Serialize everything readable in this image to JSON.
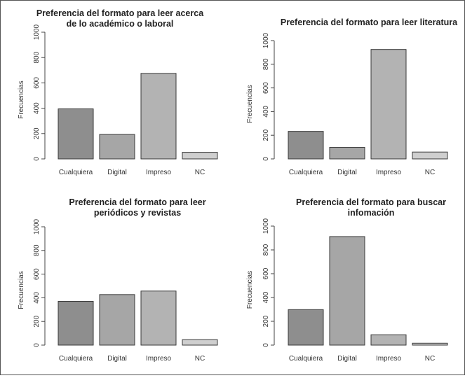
{
  "chart_data": [
    {
      "type": "bar",
      "title": [
        "Preferencia del formato para leer acerca",
        "de lo académico o laboral"
      ],
      "ylabel": "Frecuencias",
      "categories": [
        "Cualquiera",
        "Digital",
        "Impreso",
        "NC"
      ],
      "values": [
        395,
        193,
        675,
        52
      ],
      "ylim": [
        0,
        1000
      ],
      "yticks": [
        0,
        200,
        400,
        600,
        800,
        1000
      ],
      "bar_colors": [
        "#8e8e8e",
        "#a6a6a6",
        "#b3b3b3",
        "#cfcfcf"
      ]
    },
    {
      "type": "bar",
      "title": [
        "Preferencia del formato para leer literatura"
      ],
      "ylabel": "Frecuencias",
      "categories": [
        "Cualquiera",
        "Digital",
        "Impreso",
        "NC"
      ],
      "values": [
        233,
        98,
        925,
        58
      ],
      "ylim": [
        0,
        1000
      ],
      "yticks": [
        0,
        200,
        400,
        600,
        800,
        1000
      ],
      "bar_colors": [
        "#8e8e8e",
        "#a6a6a6",
        "#b3b3b3",
        "#cfcfcf"
      ]
    },
    {
      "type": "bar",
      "title": [
        "Preferencia del formato para leer",
        "periódicos y revistas"
      ],
      "ylabel": "Frecuencias",
      "categories": [
        "Cualquiera",
        "Digital",
        "Impreso",
        "NC"
      ],
      "values": [
        370,
        427,
        457,
        46
      ],
      "ylim": [
        0,
        1000
      ],
      "yticks": [
        0,
        200,
        400,
        600,
        800,
        1000
      ],
      "bar_colors": [
        "#8e8e8e",
        "#a6a6a6",
        "#b3b3b3",
        "#cfcfcf"
      ]
    },
    {
      "type": "bar",
      "title": [
        "Preferencia del formato para buscar",
        "infomación"
      ],
      "ylabel": "Frecuencias",
      "categories": [
        "Cualquiera",
        "Digital",
        "Impreso",
        "NC"
      ],
      "values": [
        298,
        912,
        87,
        16
      ],
      "ylim": [
        0,
        1000
      ],
      "yticks": [
        0,
        200,
        400,
        600,
        800,
        1000
      ],
      "bar_colors": [
        "#8e8e8e",
        "#a6a6a6",
        "#b3b3b3",
        "#cfcfcf"
      ]
    }
  ]
}
